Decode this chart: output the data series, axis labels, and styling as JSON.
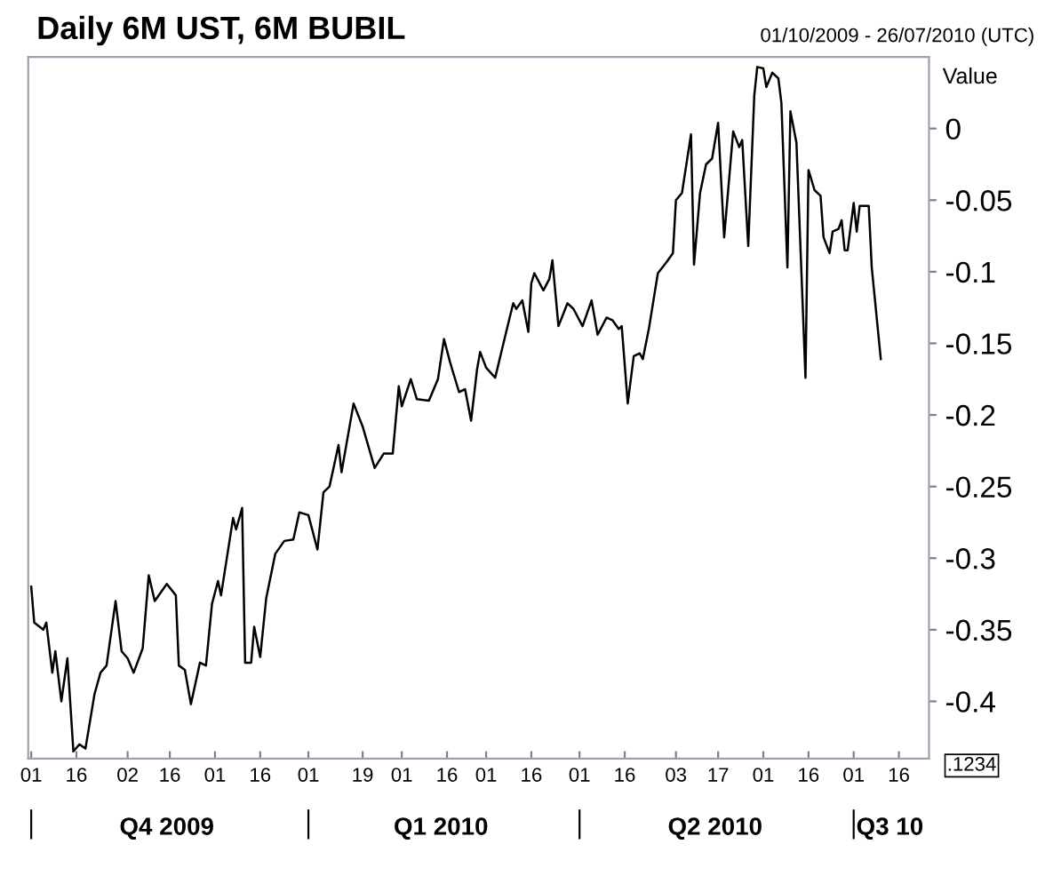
{
  "chart_data": {
    "type": "line",
    "title": "Daily 6M UST, 6M BUBIL",
    "subtitle": "01/10/2009 - 26/07/2010 (UTC)",
    "ylabel": "Value",
    "annotations": [
      ".1234"
    ],
    "x": [
      "2009-10-01",
      "2009-10-02",
      "2009-10-05",
      "2009-10-06",
      "2009-10-08",
      "2009-10-09",
      "2009-10-11",
      "2009-10-13",
      "2009-10-15",
      "2009-10-17",
      "2009-10-19",
      "2009-10-22",
      "2009-10-24",
      "2009-10-26",
      "2009-10-27",
      "2009-10-29",
      "2009-10-31",
      "2009-11-02",
      "2009-11-04",
      "2009-11-07",
      "2009-11-09",
      "2009-11-11",
      "2009-11-15",
      "2009-11-18",
      "2009-11-19",
      "2009-11-21",
      "2009-11-23",
      "2009-11-26",
      "2009-11-28",
      "2009-11-30",
      "2009-12-02",
      "2009-12-03",
      "2009-12-07",
      "2009-12-08",
      "2009-12-10",
      "2009-12-11",
      "2009-12-13",
      "2009-12-14",
      "2009-12-16",
      "2009-12-18",
      "2009-12-21",
      "2009-12-24",
      "2009-12-27",
      "2009-12-29",
      "2010-01-01",
      "2010-01-04",
      "2010-01-06",
      "2010-01-08",
      "2010-01-11",
      "2010-01-12",
      "2010-01-16",
      "2010-01-19",
      "2010-01-23",
      "2010-01-26",
      "2010-01-29",
      "2010-01-31",
      "2010-02-01",
      "2010-02-04",
      "2010-02-06",
      "2010-02-10",
      "2010-02-13",
      "2010-02-15",
      "2010-02-17",
      "2010-02-20",
      "2010-02-22",
      "2010-02-24",
      "2010-02-26",
      "2010-02-27",
      "2010-03-01",
      "2010-03-04",
      "2010-03-08",
      "2010-03-10",
      "2010-03-11",
      "2010-03-13",
      "2010-03-15",
      "2010-03-16",
      "2010-03-17",
      "2010-03-20",
      "2010-03-22",
      "2010-03-23",
      "2010-03-25",
      "2010-03-28",
      "2010-03-30",
      "2010-04-02",
      "2010-04-05",
      "2010-04-07",
      "2010-04-10",
      "2010-04-12",
      "2010-04-14",
      "2010-04-15",
      "2010-04-17",
      "2010-04-19",
      "2010-04-21",
      "2010-04-22",
      "2010-04-24",
      "2010-04-27",
      "2010-04-30",
      "2010-05-02",
      "2010-05-03",
      "2010-05-05",
      "2010-05-08",
      "2010-05-09",
      "2010-05-11",
      "2010-05-13",
      "2010-05-15",
      "2010-05-17",
      "2010-05-19",
      "2010-05-22",
      "2010-05-24",
      "2010-05-25",
      "2010-05-27",
      "2010-05-29",
      "2010-05-30",
      "2010-06-01",
      "2010-06-02",
      "2010-06-04",
      "2010-06-06",
      "2010-06-07",
      "2010-06-09",
      "2010-06-10",
      "2010-06-12",
      "2010-06-15",
      "2010-06-16",
      "2010-06-18",
      "2010-06-20",
      "2010-06-21",
      "2010-06-23",
      "2010-06-24",
      "2010-06-26",
      "2010-06-27",
      "2010-06-28",
      "2010-06-29",
      "2010-07-01",
      "2010-07-02",
      "2010-07-03",
      "2010-07-06",
      "2010-07-07",
      "2010-07-10"
    ],
    "series": [
      {
        "color": "#000000",
        "values": [
          -0.32,
          -0.345,
          -0.35,
          -0.345,
          -0.38,
          -0.365,
          -0.4,
          -0.37,
          -0.435,
          -0.43,
          -0.433,
          -0.395,
          -0.38,
          -0.375,
          -0.36,
          -0.33,
          -0.365,
          -0.37,
          -0.38,
          -0.363,
          -0.312,
          -0.33,
          -0.318,
          -0.326,
          -0.375,
          -0.378,
          -0.402,
          -0.373,
          -0.375,
          -0.332,
          -0.316,
          -0.326,
          -0.272,
          -0.28,
          -0.265,
          -0.373,
          -0.373,
          -0.348,
          -0.369,
          -0.328,
          -0.297,
          -0.288,
          -0.287,
          -0.268,
          -0.27,
          -0.294,
          -0.254,
          -0.25,
          -0.221,
          -0.24,
          -0.192,
          -0.208,
          -0.237,
          -0.227,
          -0.227,
          -0.18,
          -0.194,
          -0.175,
          -0.189,
          -0.19,
          -0.175,
          -0.147,
          -0.163,
          -0.184,
          -0.182,
          -0.204,
          -0.168,
          -0.156,
          -0.167,
          -0.174,
          -0.139,
          -0.122,
          -0.126,
          -0.12,
          -0.142,
          -0.108,
          -0.101,
          -0.113,
          -0.105,
          -0.092,
          -0.138,
          -0.122,
          -0.126,
          -0.138,
          -0.12,
          -0.144,
          -0.132,
          -0.134,
          -0.14,
          -0.138,
          -0.192,
          -0.159,
          -0.157,
          -0.161,
          -0.14,
          -0.101,
          -0.093,
          -0.087,
          -0.05,
          -0.045,
          -0.004,
          -0.095,
          -0.045,
          -0.025,
          -0.021,
          0.004,
          -0.076,
          -0.002,
          -0.013,
          -0.008,
          -0.082,
          0.023,
          0.043,
          0.042,
          0.029,
          0.039,
          0.035,
          0.018,
          -0.097,
          0.012,
          -0.01,
          -0.174,
          -0.029,
          -0.043,
          -0.047,
          -0.076,
          -0.087,
          -0.072,
          -0.07,
          -0.064,
          -0.085,
          -0.085,
          -0.052,
          -0.072,
          -0.054,
          -0.054,
          -0.097,
          -0.161
        ]
      }
    ],
    "xlim": [
      "2009-09-30",
      "2010-07-26"
    ],
    "xticks": [
      {
        "value": "2009-10-01",
        "label": "01"
      },
      {
        "value": "2009-10-16",
        "label": "16"
      },
      {
        "value": "2009-11-02",
        "label": "02"
      },
      {
        "value": "2009-11-16",
        "label": "16"
      },
      {
        "value": "2009-12-01",
        "label": "01"
      },
      {
        "value": "2009-12-16",
        "label": "16"
      },
      {
        "value": "2010-01-01",
        "label": "01"
      },
      {
        "value": "2010-01-19",
        "label": "19"
      },
      {
        "value": "2010-02-01",
        "label": "01"
      },
      {
        "value": "2010-02-16",
        "label": "16"
      },
      {
        "value": "2010-03-01",
        "label": "01"
      },
      {
        "value": "2010-03-16",
        "label": "16"
      },
      {
        "value": "2010-04-01",
        "label": "01"
      },
      {
        "value": "2010-04-16",
        "label": "16"
      },
      {
        "value": "2010-05-03",
        "label": "03"
      },
      {
        "value": "2010-05-17",
        "label": "17"
      },
      {
        "value": "2010-06-01",
        "label": "01"
      },
      {
        "value": "2010-06-16",
        "label": "16"
      },
      {
        "value": "2010-07-01",
        "label": "01"
      },
      {
        "value": "2010-07-16",
        "label": "16"
      }
    ],
    "x2lim": [
      "2009-09-30",
      "2010-07-26"
    ],
    "x2ticks": [
      {
        "value": "2009-10-01",
        "label": null
      },
      {
        "value": "2009-11-15",
        "label": "Q4 2009"
      },
      {
        "value": "2010-01-01",
        "label": null
      },
      {
        "value": "2010-02-14",
        "label": "Q1 2010"
      },
      {
        "value": "2010-04-01",
        "label": null
      },
      {
        "value": "2010-05-16",
        "label": "Q2 2010"
      },
      {
        "value": "2010-07-01",
        "label": null
      },
      {
        "value": "2010-07-13",
        "label": "Q3 10"
      }
    ],
    "ylim": [
      -0.44,
      0.05
    ],
    "yticks": [
      0,
      -0.05,
      -0.1,
      -0.15,
      -0.2,
      -0.25,
      -0.3,
      -0.35,
      -0.4
    ],
    "grid": false,
    "legend": false,
    "marker": "none",
    "line_style": "solid"
  }
}
